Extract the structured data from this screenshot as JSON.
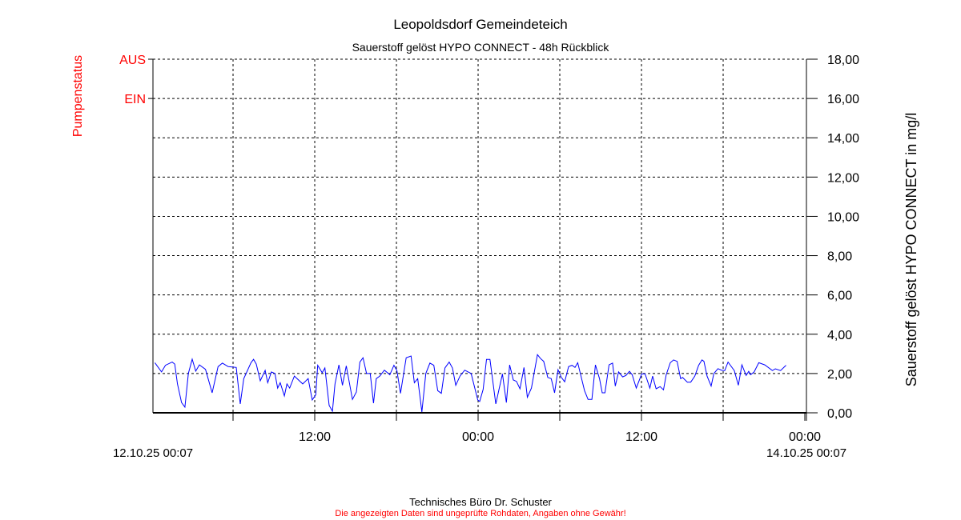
{
  "chart_data": {
    "type": "line",
    "title": "Leopoldsdorf Gemeindeteich",
    "subtitle": "Sauerstoff gelöst  HYPO CONNECT - 48h Rückblick",
    "ylabel": "Sauerstoff gelöst  HYPO CONNECT in mg/l",
    "ylabel_left": "Pumpenstatus",
    "ylim": [
      0,
      18
    ],
    "xlim_hours": [
      0,
      48
    ],
    "y_ticks": [
      0,
      2,
      4,
      6,
      8,
      10,
      12,
      14,
      16,
      18
    ],
    "y_tick_labels": [
      "0,00",
      "2,00",
      "4,00",
      "6,00",
      "8,00",
      "10,00",
      "12,00",
      "14,00",
      "16,00",
      "18,00"
    ],
    "left_labels": [
      {
        "text": "AUS",
        "y": 18
      },
      {
        "text": "EIN",
        "y": 16
      }
    ],
    "x_grid_hours": [
      5.883,
      11.883,
      17.883,
      23.883,
      29.883,
      35.883,
      41.883,
      47.883
    ],
    "x_tick_labels": [
      {
        "text": "12:00",
        "hour": 11.883
      },
      {
        "text": "00:00",
        "hour": 23.883
      },
      {
        "text": "12:00",
        "hour": 35.883
      },
      {
        "text": "00:00",
        "hour": 47.883
      }
    ],
    "x_start_label": "12.10.25 00:07",
    "x_end_label": "14.10.25 00:07",
    "grid": true,
    "series": [
      {
        "name": "Sauerstoff gelöst HYPO CONNECT",
        "color": "#0000ff",
        "points": [
          [
            0.14,
            2.55
          ],
          [
            0.63,
            2.08
          ],
          [
            0.92,
            2.42
          ],
          [
            1.41,
            2.58
          ],
          [
            1.6,
            2.48
          ],
          [
            1.8,
            1.47
          ],
          [
            2.1,
            0.52
          ],
          [
            2.35,
            0.29
          ],
          [
            2.6,
            2.0
          ],
          [
            2.88,
            2.73
          ],
          [
            3.14,
            2.12
          ],
          [
            3.41,
            2.44
          ],
          [
            3.86,
            2.21
          ],
          [
            4.35,
            1.02
          ],
          [
            4.78,
            2.35
          ],
          [
            5.1,
            2.53
          ],
          [
            5.53,
            2.35
          ],
          [
            6.12,
            2.31
          ],
          [
            6.41,
            0.45
          ],
          [
            6.67,
            1.74
          ],
          [
            7.2,
            2.55
          ],
          [
            7.39,
            2.72
          ],
          [
            7.59,
            2.48
          ],
          [
            7.88,
            1.63
          ],
          [
            8.24,
            2.16
          ],
          [
            8.43,
            1.53
          ],
          [
            8.7,
            2.08
          ],
          [
            8.96,
            2.0
          ],
          [
            9.16,
            1.26
          ],
          [
            9.35,
            1.53
          ],
          [
            9.65,
            0.86
          ],
          [
            9.84,
            1.47
          ],
          [
            10.04,
            1.26
          ],
          [
            10.39,
            1.87
          ],
          [
            11.0,
            1.47
          ],
          [
            11.4,
            1.74
          ],
          [
            11.7,
            0.65
          ],
          [
            11.96,
            0.92
          ],
          [
            12.1,
            2.42
          ],
          [
            12.43,
            2.04
          ],
          [
            12.63,
            2.28
          ],
          [
            12.94,
            0.38
          ],
          [
            13.18,
            0.08
          ],
          [
            13.37,
            1.47
          ],
          [
            13.66,
            2.44
          ],
          [
            13.92,
            1.4
          ],
          [
            14.2,
            2.39
          ],
          [
            14.65,
            0.68
          ],
          [
            14.94,
            1.06
          ],
          [
            15.2,
            2.58
          ],
          [
            15.43,
            2.8
          ],
          [
            15.69,
            2.0
          ],
          [
            15.96,
            2.0
          ],
          [
            16.2,
            0.49
          ],
          [
            16.4,
            1.74
          ],
          [
            16.66,
            1.87
          ],
          [
            17.0,
            2.17
          ],
          [
            17.4,
            1.94
          ],
          [
            17.7,
            2.42
          ],
          [
            17.92,
            2.15
          ],
          [
            18.18,
            0.99
          ],
          [
            18.6,
            2.8
          ],
          [
            18.96,
            2.89
          ],
          [
            19.2,
            1.53
          ],
          [
            19.45,
            1.74
          ],
          [
            19.75,
            0.04
          ],
          [
            20.04,
            2.0
          ],
          [
            20.34,
            2.53
          ],
          [
            20.63,
            2.42
          ],
          [
            20.92,
            1.13
          ],
          [
            21.18,
            0.99
          ],
          [
            21.45,
            2.28
          ],
          [
            21.76,
            2.58
          ],
          [
            22.0,
            2.28
          ],
          [
            22.24,
            1.4
          ],
          [
            22.55,
            1.87
          ],
          [
            22.9,
            2.17
          ],
          [
            23.37,
            2.0
          ],
          [
            23.86,
            0.65
          ],
          [
            24.0,
            0.58
          ],
          [
            24.25,
            1.19
          ],
          [
            24.5,
            2.72
          ],
          [
            24.75,
            2.72
          ],
          [
            25.18,
            0.45
          ],
          [
            25.67,
            1.98
          ],
          [
            25.96,
            0.52
          ],
          [
            26.2,
            2.44
          ],
          [
            26.47,
            1.67
          ],
          [
            26.7,
            1.6
          ],
          [
            26.96,
            1.22
          ],
          [
            27.25,
            2.31
          ],
          [
            27.5,
            0.79
          ],
          [
            27.8,
            1.26
          ],
          [
            28.24,
            2.96
          ],
          [
            28.47,
            2.76
          ],
          [
            28.7,
            2.62
          ],
          [
            29.0,
            1.8
          ],
          [
            29.25,
            1.74
          ],
          [
            29.5,
            1.02
          ],
          [
            29.75,
            2.19
          ],
          [
            30.0,
            1.8
          ],
          [
            30.24,
            1.58
          ],
          [
            30.53,
            2.35
          ],
          [
            30.78,
            2.42
          ],
          [
            31.0,
            2.31
          ],
          [
            31.2,
            2.55
          ],
          [
            31.7,
            1.13
          ],
          [
            31.96,
            0.68
          ],
          [
            32.24,
            0.68
          ],
          [
            32.5,
            2.44
          ],
          [
            32.8,
            1.74
          ],
          [
            33.0,
            1.02
          ],
          [
            33.2,
            1.02
          ],
          [
            33.5,
            2.44
          ],
          [
            33.76,
            2.53
          ],
          [
            33.96,
            1.36
          ],
          [
            34.2,
            2.08
          ],
          [
            34.5,
            1.83
          ],
          [
            34.74,
            1.9
          ],
          [
            35.0,
            2.11
          ],
          [
            35.2,
            1.94
          ],
          [
            35.5,
            1.26
          ],
          [
            35.9,
            1.98
          ],
          [
            36.15,
            1.98
          ],
          [
            36.5,
            1.26
          ],
          [
            36.7,
            1.87
          ],
          [
            36.96,
            1.22
          ],
          [
            37.25,
            1.33
          ],
          [
            37.5,
            1.17
          ],
          [
            37.7,
            1.94
          ],
          [
            38.0,
            2.55
          ],
          [
            38.24,
            2.69
          ],
          [
            38.5,
            2.62
          ],
          [
            38.76,
            1.74
          ],
          [
            38.9,
            1.8
          ],
          [
            39.25,
            1.56
          ],
          [
            39.5,
            1.56
          ],
          [
            39.8,
            1.87
          ],
          [
            40.08,
            2.42
          ],
          [
            40.33,
            2.69
          ],
          [
            40.47,
            2.62
          ],
          [
            40.7,
            1.87
          ],
          [
            41.0,
            1.36
          ],
          [
            41.2,
            2.0
          ],
          [
            41.5,
            2.25
          ],
          [
            41.76,
            2.17
          ],
          [
            42.0,
            2.15
          ],
          [
            42.24,
            2.58
          ],
          [
            42.7,
            2.15
          ],
          [
            43.0,
            1.4
          ],
          [
            43.26,
            2.44
          ],
          [
            43.57,
            1.9
          ],
          [
            43.76,
            2.11
          ],
          [
            43.9,
            1.94
          ],
          [
            44.16,
            2.08
          ],
          [
            44.5,
            2.55
          ],
          [
            44.94,
            2.44
          ],
          [
            45.5,
            2.15
          ],
          [
            45.72,
            2.24
          ],
          [
            46.1,
            2.15
          ],
          [
            46.5,
            2.42
          ]
        ]
      }
    ]
  },
  "footer": {
    "company": "Technisches Büro Dr. Schuster",
    "disclaimer": "Die angezeigten Daten sind ungeprüfte Rohdaten, Angaben ohne Gewähr!"
  },
  "colors": {
    "accent_red": "#ff0000",
    "line": "#0000ff"
  }
}
